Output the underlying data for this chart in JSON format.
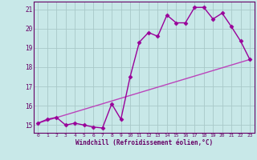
{
  "title": "",
  "xlabel": "Windchill (Refroidissement éolien,°C)",
  "bg_color": "#c8e8e8",
  "grid_color": "#a8c8c8",
  "line_color": "#990099",
  "line_color2": "#bb44bb",
  "xlim": [
    -0.5,
    23.5
  ],
  "ylim": [
    14.6,
    21.4
  ],
  "xticks": [
    0,
    1,
    2,
    3,
    4,
    5,
    6,
    7,
    8,
    9,
    10,
    11,
    12,
    13,
    14,
    15,
    16,
    17,
    18,
    19,
    20,
    21,
    22,
    23
  ],
  "yticks": [
    15,
    16,
    17,
    18,
    19,
    20,
    21
  ],
  "series1_x": [
    0,
    1,
    2,
    3,
    4,
    5,
    6,
    7,
    8,
    9,
    10,
    11,
    12,
    13,
    14,
    15,
    16,
    17,
    18,
    19,
    20,
    21,
    22,
    23
  ],
  "series1_y": [
    15.1,
    15.3,
    15.4,
    15.0,
    15.1,
    15.0,
    14.9,
    14.85,
    16.1,
    15.3,
    17.5,
    19.3,
    19.8,
    19.6,
    20.7,
    20.3,
    20.3,
    21.1,
    21.1,
    20.5,
    20.8,
    20.1,
    19.35,
    18.4
  ],
  "series2_x": [
    0,
    23
  ],
  "series2_y": [
    15.1,
    18.4
  ],
  "marker": "D",
  "markersize": 2.5,
  "linewidth": 1.0
}
